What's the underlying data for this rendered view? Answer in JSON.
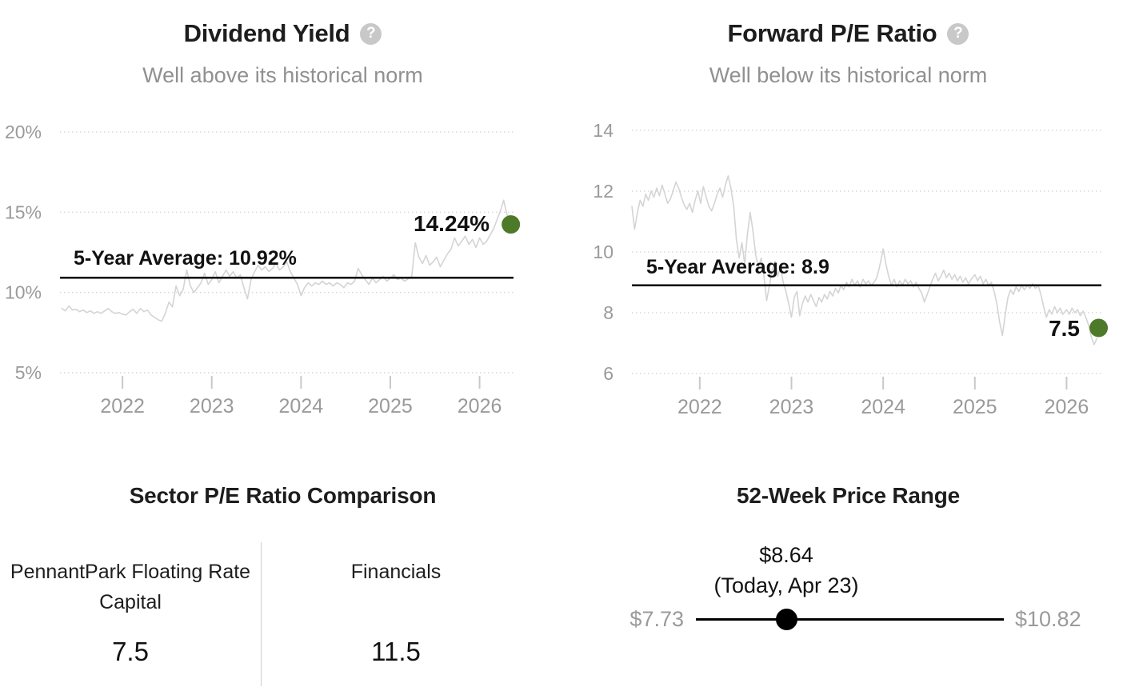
{
  "icons": {
    "help_glyph": "?"
  },
  "colors": {
    "accent_green": "#4d7a28",
    "series_line": "#d4d4d4",
    "grid": "#d9d9d9",
    "tick": "#c9c9c9",
    "axis_text": "#9a9a9a",
    "average_line": "#000000",
    "muted_text": "#909090",
    "dark_text": "#1d1d1d"
  },
  "chart_data": [
    {
      "id": "dividend_yield",
      "type": "line",
      "title": "Dividend Yield",
      "subtitle": "Well above its historical norm",
      "ylim": [
        5,
        20
      ],
      "xlim": [
        2021.3,
        2026.38
      ],
      "grid": true,
      "y_ticks": [
        {
          "value": 20,
          "label": "20%"
        },
        {
          "value": 15,
          "label": "15%"
        },
        {
          "value": 10,
          "label": "10%"
        },
        {
          "value": 5,
          "label": "5%"
        }
      ],
      "x_ticks": [
        {
          "value": 2022,
          "label": "2022"
        },
        {
          "value": 2023,
          "label": "2023"
        },
        {
          "value": 2024,
          "label": "2024"
        },
        {
          "value": 2025,
          "label": "2025"
        },
        {
          "value": 2026,
          "label": "2026"
        }
      ],
      "average": {
        "label": "5-Year Average: 10.92%",
        "value": 10.92
      },
      "current": {
        "label": "14.24%",
        "value": 14.24,
        "x": 2026.35
      },
      "series": [
        [
          2021.32,
          9.0
        ],
        [
          2021.36,
          8.85
        ],
        [
          2021.4,
          9.15
        ],
        [
          2021.44,
          8.9
        ],
        [
          2021.48,
          8.95
        ],
        [
          2021.52,
          8.8
        ],
        [
          2021.56,
          8.9
        ],
        [
          2021.6,
          8.75
        ],
        [
          2021.64,
          8.85
        ],
        [
          2021.68,
          8.7
        ],
        [
          2021.72,
          8.8
        ],
        [
          2021.76,
          8.7
        ],
        [
          2021.8,
          8.85
        ],
        [
          2021.84,
          9.0
        ],
        [
          2021.88,
          8.8
        ],
        [
          2021.92,
          8.7
        ],
        [
          2021.96,
          8.75
        ],
        [
          2022.0,
          8.65
        ],
        [
          2022.04,
          8.6
        ],
        [
          2022.08,
          8.8
        ],
        [
          2022.12,
          8.95
        ],
        [
          2022.16,
          8.7
        ],
        [
          2022.2,
          9.0
        ],
        [
          2022.24,
          8.8
        ],
        [
          2022.28,
          8.9
        ],
        [
          2022.32,
          8.6
        ],
        [
          2022.36,
          8.45
        ],
        [
          2022.4,
          8.3
        ],
        [
          2022.44,
          8.2
        ],
        [
          2022.48,
          8.7
        ],
        [
          2022.52,
          9.4
        ],
        [
          2022.56,
          9.1
        ],
        [
          2022.6,
          10.4
        ],
        [
          2022.64,
          9.8
        ],
        [
          2022.68,
          10.2
        ],
        [
          2022.72,
          11.4
        ],
        [
          2022.76,
          10.4
        ],
        [
          2022.8,
          10.0
        ],
        [
          2022.84,
          10.3
        ],
        [
          2022.88,
          10.6
        ],
        [
          2022.92,
          11.2
        ],
        [
          2022.96,
          10.5
        ],
        [
          2023.0,
          10.8
        ],
        [
          2023.04,
          11.3
        ],
        [
          2023.08,
          10.6
        ],
        [
          2023.12,
          11.0
        ],
        [
          2023.16,
          11.4
        ],
        [
          2023.2,
          11.0
        ],
        [
          2023.24,
          11.3
        ],
        [
          2023.28,
          10.9
        ],
        [
          2023.32,
          11.1
        ],
        [
          2023.36,
          10.3
        ],
        [
          2023.4,
          9.6
        ],
        [
          2023.44,
          10.8
        ],
        [
          2023.48,
          11.3
        ],
        [
          2023.52,
          11.7
        ],
        [
          2023.56,
          11.4
        ],
        [
          2023.6,
          11.6
        ],
        [
          2023.64,
          11.3
        ],
        [
          2023.68,
          11.5
        ],
        [
          2023.72,
          11.8
        ],
        [
          2023.76,
          11.4
        ],
        [
          2023.8,
          11.6
        ],
        [
          2023.84,
          11.9
        ],
        [
          2023.88,
          11.3
        ],
        [
          2023.92,
          10.9
        ],
        [
          2023.96,
          10.5
        ],
        [
          2024.0,
          9.8
        ],
        [
          2024.04,
          10.3
        ],
        [
          2024.08,
          10.6
        ],
        [
          2024.12,
          10.4
        ],
        [
          2024.16,
          10.6
        ],
        [
          2024.2,
          10.5
        ],
        [
          2024.24,
          10.7
        ],
        [
          2024.28,
          10.5
        ],
        [
          2024.32,
          10.6
        ],
        [
          2024.36,
          10.4
        ],
        [
          2024.4,
          10.6
        ],
        [
          2024.44,
          10.5
        ],
        [
          2024.48,
          10.3
        ],
        [
          2024.52,
          10.6
        ],
        [
          2024.56,
          10.5
        ],
        [
          2024.6,
          10.7
        ],
        [
          2024.64,
          11.5
        ],
        [
          2024.68,
          11.1
        ],
        [
          2024.72,
          10.8
        ],
        [
          2024.76,
          10.5
        ],
        [
          2024.8,
          10.9
        ],
        [
          2024.84,
          10.6
        ],
        [
          2024.88,
          10.8
        ],
        [
          2024.92,
          11.0
        ],
        [
          2024.96,
          10.7
        ],
        [
          2025.0,
          10.9
        ],
        [
          2025.04,
          11.1
        ],
        [
          2025.08,
          10.8
        ],
        [
          2025.12,
          10.9
        ],
        [
          2025.16,
          10.7
        ],
        [
          2025.2,
          10.85
        ],
        [
          2025.24,
          11.0
        ],
        [
          2025.28,
          13.1
        ],
        [
          2025.32,
          12.2
        ],
        [
          2025.36,
          11.8
        ],
        [
          2025.4,
          12.3
        ],
        [
          2025.44,
          11.7
        ],
        [
          2025.48,
          11.9
        ],
        [
          2025.52,
          12.2
        ],
        [
          2025.56,
          11.6
        ],
        [
          2025.6,
          12.0
        ],
        [
          2025.64,
          12.4
        ],
        [
          2025.68,
          12.7
        ],
        [
          2025.72,
          13.4
        ],
        [
          2025.76,
          12.9
        ],
        [
          2025.8,
          13.2
        ],
        [
          2025.84,
          13.5
        ],
        [
          2025.88,
          13.0
        ],
        [
          2025.92,
          13.3
        ],
        [
          2025.96,
          12.8
        ],
        [
          2026.0,
          13.4
        ],
        [
          2026.04,
          13.0
        ],
        [
          2026.08,
          13.2
        ],
        [
          2026.12,
          13.6
        ],
        [
          2026.16,
          14.0
        ],
        [
          2026.2,
          14.6
        ],
        [
          2026.24,
          15.2
        ],
        [
          2026.27,
          15.75
        ],
        [
          2026.3,
          15.0
        ],
        [
          2026.33,
          14.4
        ],
        [
          2026.35,
          14.24
        ]
      ]
    },
    {
      "id": "forward_pe_ratio",
      "type": "line",
      "title": "Forward P/E Ratio",
      "subtitle": "Well below its historical norm",
      "ylim": [
        6,
        14
      ],
      "xlim": [
        2021.26,
        2026.38
      ],
      "grid": true,
      "y_ticks": [
        {
          "value": 14,
          "label": "14"
        },
        {
          "value": 12,
          "label": "12"
        },
        {
          "value": 10,
          "label": "10"
        },
        {
          "value": 8,
          "label": "8"
        },
        {
          "value": 6,
          "label": "6"
        }
      ],
      "x_ticks": [
        {
          "value": 2022,
          "label": "2022"
        },
        {
          "value": 2023,
          "label": "2023"
        },
        {
          "value": 2024,
          "label": "2024"
        },
        {
          "value": 2025,
          "label": "2025"
        },
        {
          "value": 2026,
          "label": "2026"
        }
      ],
      "average": {
        "label": "5-Year Average: 8.9",
        "value": 8.9
      },
      "current": {
        "label": "7.5",
        "value": 7.5,
        "x": 2026.35
      },
      "series": [
        [
          2021.26,
          11.5
        ],
        [
          2021.29,
          10.75
        ],
        [
          2021.32,
          11.3
        ],
        [
          2021.35,
          11.7
        ],
        [
          2021.38,
          11.5
        ],
        [
          2021.41,
          11.9
        ],
        [
          2021.44,
          11.7
        ],
        [
          2021.47,
          12.0
        ],
        [
          2021.5,
          11.8
        ],
        [
          2021.53,
          12.1
        ],
        [
          2021.56,
          11.85
        ],
        [
          2021.59,
          12.2
        ],
        [
          2021.62,
          11.9
        ],
        [
          2021.65,
          11.6
        ],
        [
          2021.68,
          11.75
        ],
        [
          2021.71,
          12.0
        ],
        [
          2021.74,
          12.3
        ],
        [
          2021.77,
          12.1
        ],
        [
          2021.8,
          11.8
        ],
        [
          2021.83,
          11.55
        ],
        [
          2021.86,
          11.4
        ],
        [
          2021.89,
          11.6
        ],
        [
          2021.92,
          11.3
        ],
        [
          2021.95,
          11.7
        ],
        [
          2021.98,
          12.0
        ],
        [
          2022.01,
          11.6
        ],
        [
          2022.04,
          12.15
        ],
        [
          2022.07,
          11.8
        ],
        [
          2022.1,
          11.5
        ],
        [
          2022.13,
          11.35
        ],
        [
          2022.16,
          11.6
        ],
        [
          2022.19,
          11.9
        ],
        [
          2022.22,
          12.1
        ],
        [
          2022.25,
          11.8
        ],
        [
          2022.28,
          12.2
        ],
        [
          2022.31,
          12.5
        ],
        [
          2022.34,
          12.1
        ],
        [
          2022.37,
          11.5
        ],
        [
          2022.4,
          10.4
        ],
        [
          2022.43,
          9.8
        ],
        [
          2022.46,
          10.3
        ],
        [
          2022.49,
          9.6
        ],
        [
          2022.52,
          10.6
        ],
        [
          2022.55,
          11.3
        ],
        [
          2022.58,
          10.7
        ],
        [
          2022.61,
          9.9
        ],
        [
          2022.64,
          9.5
        ],
        [
          2022.67,
          9.8
        ],
        [
          2022.7,
          9.2
        ],
        [
          2022.73,
          8.4
        ],
        [
          2022.76,
          8.9
        ],
        [
          2022.79,
          9.4
        ],
        [
          2022.82,
          9.7
        ],
        [
          2022.85,
          9.2
        ],
        [
          2022.88,
          9.5
        ],
        [
          2022.91,
          9.0
        ],
        [
          2022.94,
          8.7
        ],
        [
          2022.97,
          8.3
        ],
        [
          2023.0,
          7.85
        ],
        [
          2023.03,
          8.5
        ],
        [
          2023.06,
          8.7
        ],
        [
          2023.09,
          7.9
        ],
        [
          2023.12,
          8.3
        ],
        [
          2023.15,
          8.55
        ],
        [
          2023.18,
          8.35
        ],
        [
          2023.21,
          8.6
        ],
        [
          2023.24,
          8.4
        ],
        [
          2023.27,
          8.2
        ],
        [
          2023.3,
          8.5
        ],
        [
          2023.33,
          8.35
        ],
        [
          2023.36,
          8.6
        ],
        [
          2023.39,
          8.45
        ],
        [
          2023.42,
          8.7
        ],
        [
          2023.45,
          8.55
        ],
        [
          2023.48,
          8.8
        ],
        [
          2023.51,
          8.65
        ],
        [
          2023.54,
          8.9
        ],
        [
          2023.57,
          8.75
        ],
        [
          2023.6,
          9.0
        ],
        [
          2023.63,
          8.85
        ],
        [
          2023.66,
          9.1
        ],
        [
          2023.69,
          8.9
        ],
        [
          2023.72,
          9.05
        ],
        [
          2023.75,
          8.85
        ],
        [
          2023.78,
          9.1
        ],
        [
          2023.81,
          8.95
        ],
        [
          2023.84,
          9.05
        ],
        [
          2023.87,
          8.9
        ],
        [
          2023.9,
          9.0
        ],
        [
          2023.93,
          9.15
        ],
        [
          2023.96,
          9.5
        ],
        [
          2024.0,
          10.1
        ],
        [
          2024.03,
          9.6
        ],
        [
          2024.06,
          9.2
        ],
        [
          2024.09,
          8.9
        ],
        [
          2024.12,
          9.1
        ],
        [
          2024.15,
          8.85
        ],
        [
          2024.18,
          9.05
        ],
        [
          2024.21,
          8.9
        ],
        [
          2024.24,
          9.1
        ],
        [
          2024.27,
          8.95
        ],
        [
          2024.3,
          9.05
        ],
        [
          2024.33,
          8.85
        ],
        [
          2024.36,
          9.0
        ],
        [
          2024.39,
          8.8
        ],
        [
          2024.42,
          8.65
        ],
        [
          2024.45,
          8.35
        ],
        [
          2024.48,
          8.6
        ],
        [
          2024.51,
          8.85
        ],
        [
          2024.54,
          9.1
        ],
        [
          2024.57,
          9.3
        ],
        [
          2024.6,
          9.05
        ],
        [
          2024.63,
          9.2
        ],
        [
          2024.66,
          9.4
        ],
        [
          2024.69,
          9.15
        ],
        [
          2024.72,
          9.3
        ],
        [
          2024.75,
          9.1
        ],
        [
          2024.78,
          9.25
        ],
        [
          2024.81,
          9.05
        ],
        [
          2024.84,
          9.2
        ],
        [
          2024.87,
          9.0
        ],
        [
          2024.9,
          9.15
        ],
        [
          2024.93,
          8.95
        ],
        [
          2024.96,
          9.1
        ],
        [
          2025.0,
          9.25
        ],
        [
          2025.03,
          9.05
        ],
        [
          2025.06,
          9.2
        ],
        [
          2025.09,
          8.95
        ],
        [
          2025.12,
          9.1
        ],
        [
          2025.15,
          8.9
        ],
        [
          2025.18,
          9.0
        ],
        [
          2025.21,
          8.7
        ],
        [
          2025.24,
          8.3
        ],
        [
          2025.27,
          7.7
        ],
        [
          2025.3,
          7.25
        ],
        [
          2025.33,
          7.9
        ],
        [
          2025.36,
          8.5
        ],
        [
          2025.39,
          8.75
        ],
        [
          2025.42,
          8.6
        ],
        [
          2025.45,
          8.85
        ],
        [
          2025.48,
          8.7
        ],
        [
          2025.51,
          8.9
        ],
        [
          2025.54,
          8.75
        ],
        [
          2025.57,
          8.9
        ],
        [
          2025.6,
          8.8
        ],
        [
          2025.63,
          8.95
        ],
        [
          2025.66,
          8.8
        ],
        [
          2025.69,
          8.9
        ],
        [
          2025.72,
          8.6
        ],
        [
          2025.75,
          8.2
        ],
        [
          2025.78,
          7.85
        ],
        [
          2025.81,
          8.1
        ],
        [
          2025.84,
          7.95
        ],
        [
          2025.87,
          8.2
        ],
        [
          2025.9,
          8.0
        ],
        [
          2025.93,
          8.15
        ],
        [
          2025.96,
          7.95
        ],
        [
          2026.0,
          8.1
        ],
        [
          2026.03,
          7.95
        ],
        [
          2026.06,
          8.15
        ],
        [
          2026.09,
          8.0
        ],
        [
          2026.12,
          8.1
        ],
        [
          2026.15,
          7.9
        ],
        [
          2026.18,
          8.05
        ],
        [
          2026.21,
          7.85
        ],
        [
          2026.24,
          7.6
        ],
        [
          2026.27,
          7.2
        ],
        [
          2026.3,
          6.95
        ],
        [
          2026.33,
          7.15
        ]
      ]
    },
    {
      "id": "sector_pe_comparison",
      "type": "table",
      "title": "Sector P/E Ratio Comparison",
      "columns": [
        {
          "label": "PennantPark Floating Rate Capital",
          "value": "7.5"
        },
        {
          "label": "Financials",
          "value": "11.5"
        }
      ]
    },
    {
      "id": "price_range_52_week",
      "type": "range",
      "title": "52-Week Price Range",
      "low": {
        "label": "$7.73",
        "value": 7.73
      },
      "high": {
        "label": "$10.82",
        "value": 10.82
      },
      "current": {
        "label": "$8.64",
        "sublabel": "(Today, Apr 23)",
        "value": 8.64
      }
    }
  ]
}
